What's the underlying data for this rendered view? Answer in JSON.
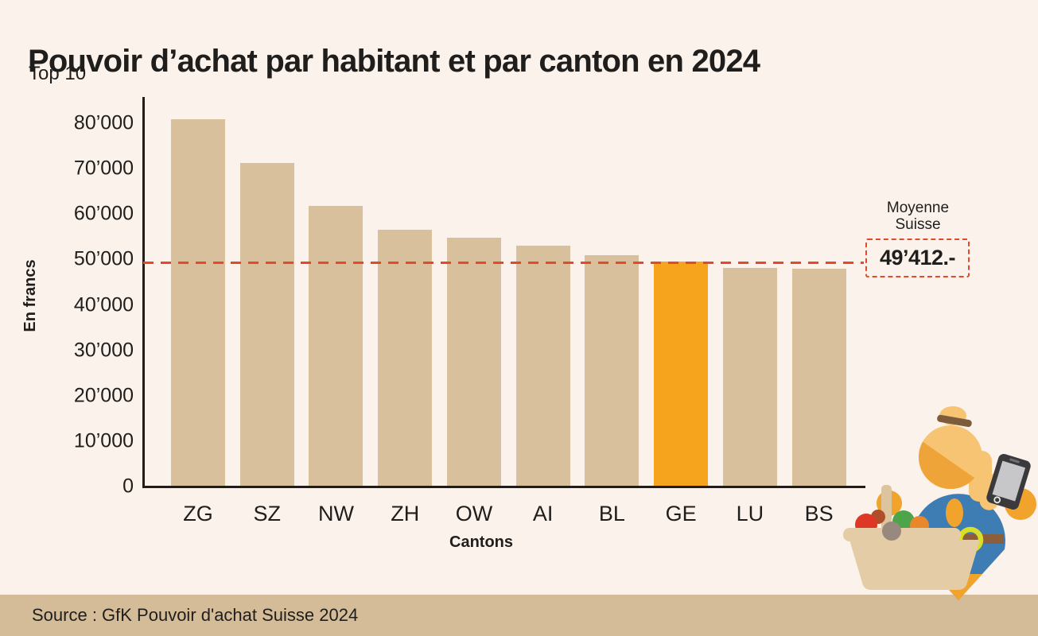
{
  "header": {
    "title": "Pouvoir d’achat par habitant et par canton en 2024",
    "subtitle": "Top 10"
  },
  "chart_data": {
    "type": "bar",
    "title": "Pouvoir d’achat par habitant et par canton en 2024",
    "subtitle": "Top 10",
    "categories": [
      "ZG",
      "SZ",
      "NW",
      "ZH",
      "OW",
      "AI",
      "BL",
      "GE",
      "LU",
      "BS"
    ],
    "values": [
      81100,
      71500,
      62000,
      56800,
      54900,
      53300,
      51200,
      49800,
      48300,
      48200
    ],
    "highlighted_category": "GE",
    "xlabel": "Cantons",
    "ylabel": "En francs",
    "ylim": [
      0,
      80000
    ],
    "ytick_labels": [
      "0",
      "10’000",
      "20’000",
      "30’000",
      "40’000",
      "50’000",
      "60’000",
      "70’000",
      "80’000"
    ],
    "grid": false,
    "legend": null,
    "reference_line": {
      "value": 49412,
      "label": "Moyenne Suisse",
      "value_text": "49’412.-",
      "style": "dashed"
    }
  },
  "annotation": {
    "label": "Moyenne Suisse",
    "value": "49’412.-"
  },
  "source": {
    "text": "Source : GfK Pouvoir d'achat Suisse 2024"
  },
  "colors": {
    "background": "#faf2eb",
    "bar": "#d8c09d",
    "bar_highlight": "#f6a31e",
    "reference": "#e2492d",
    "text": "#201e1c",
    "source_band": "#d5bc99"
  },
  "illustration": {
    "icons": [
      "woman-shopper-icon",
      "smartphone-icon",
      "shopping-basket-icon"
    ]
  }
}
